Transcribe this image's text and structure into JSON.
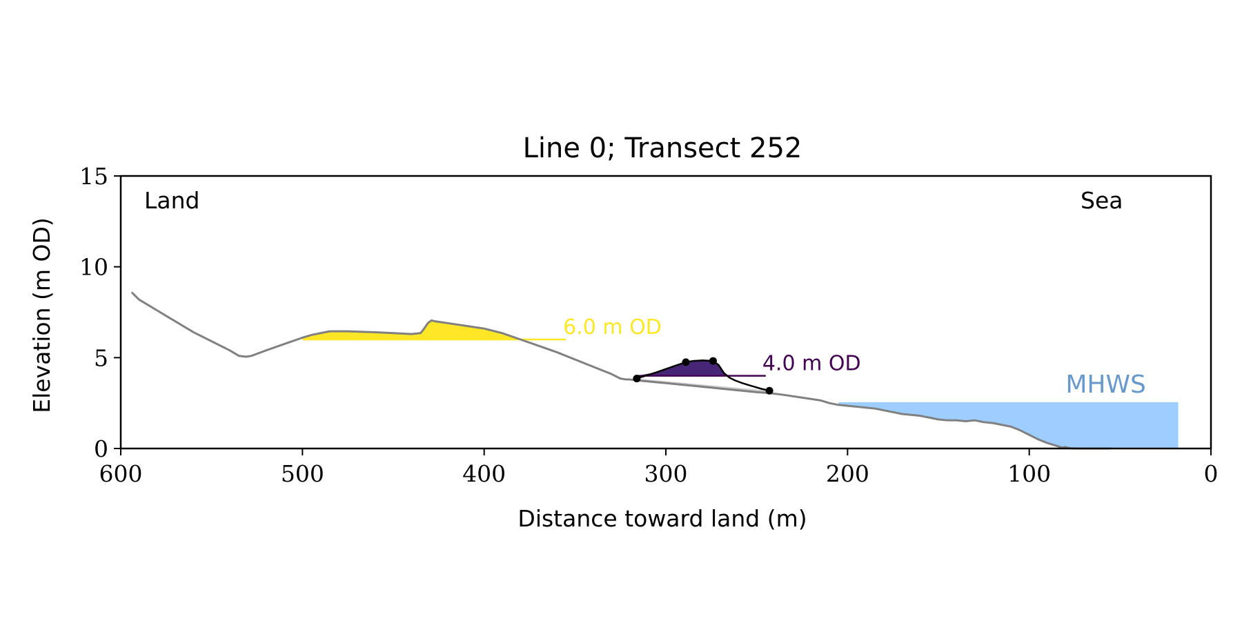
{
  "chart_data": {
    "type": "area",
    "title": "Line 0; Transect 252",
    "xlabel": "Distance toward land (m)",
    "ylabel": "Elevation (m OD)",
    "xlim": [
      600,
      0
    ],
    "ylim": [
      0,
      15
    ],
    "x_ticks": [
      600,
      500,
      400,
      300,
      200,
      100,
      0
    ],
    "y_ticks": [
      0,
      5,
      10,
      15
    ],
    "grid": false,
    "annotations": {
      "land": "Land",
      "sea": "Sea"
    },
    "profile": {
      "color": "#808080",
      "x": [
        594,
        590,
        580,
        570,
        560,
        550,
        540,
        535,
        531,
        528,
        520,
        510,
        500,
        495,
        490,
        485,
        480,
        475,
        470,
        460,
        450,
        440,
        435,
        433,
        431,
        429,
        427,
        420,
        410,
        400,
        390,
        380,
        370,
        360,
        350,
        340,
        330,
        325,
        322,
        320,
        316,
        300,
        290,
        280,
        275,
        270,
        260,
        250,
        243,
        235,
        225,
        215,
        210,
        205,
        200,
        195,
        190,
        185,
        180,
        175,
        170,
        165,
        160,
        155,
        150,
        145,
        140,
        135,
        130,
        125,
        120,
        115,
        110,
        105,
        100,
        95,
        90,
        85,
        82,
        80,
        78,
        75,
        70,
        65,
        60,
        55
      ],
      "y": [
        8.6,
        8.2,
        7.6,
        7.0,
        6.4,
        5.9,
        5.4,
        5.1,
        5.05,
        5.1,
        5.4,
        5.75,
        6.1,
        6.25,
        6.35,
        6.45,
        6.45,
        6.45,
        6.43,
        6.4,
        6.35,
        6.3,
        6.35,
        6.6,
        6.9,
        7.05,
        7.0,
        6.9,
        6.75,
        6.6,
        6.35,
        6.0,
        5.65,
        5.3,
        4.9,
        4.5,
        4.1,
        3.85,
        3.8,
        3.8,
        3.75,
        3.6,
        3.5,
        3.4,
        3.35,
        3.3,
        3.2,
        3.1,
        3.05,
        2.95,
        2.8,
        2.65,
        2.5,
        2.4,
        2.35,
        2.3,
        2.25,
        2.2,
        2.1,
        2.0,
        1.9,
        1.85,
        1.8,
        1.7,
        1.6,
        1.55,
        1.55,
        1.5,
        1.55,
        1.45,
        1.4,
        1.3,
        1.2,
        1.0,
        0.75,
        0.5,
        0.3,
        0.15,
        0.05,
        0.08,
        0.02,
        0.0,
        0.0,
        0.0,
        0.0,
        0.0
      ]
    },
    "level_6": {
      "label": "6.0 m OD",
      "elevation": 6.0,
      "color": "#fde725",
      "x_from": 500,
      "x_to": 355
    },
    "level_4": {
      "label": "4.0 m OD",
      "elevation": 4.0,
      "color": "#440154",
      "fill_color": "#482677",
      "x_from": 316,
      "x_to": 245,
      "feature_x": [
        316,
        305,
        295,
        289,
        285,
        280,
        274,
        271,
        268,
        265,
        262,
        258,
        253,
        248,
        243
      ],
      "feature_y": [
        3.85,
        4.2,
        4.55,
        4.75,
        4.82,
        4.85,
        4.82,
        4.6,
        4.15,
        3.9,
        3.75,
        3.6,
        3.45,
        3.3,
        3.18
      ],
      "points_x": [
        316,
        289,
        274,
        243
      ],
      "points_y": [
        3.85,
        4.75,
        4.82,
        3.18
      ],
      "shadow_color": "#cccccc"
    },
    "mhws": {
      "label": "MHWS",
      "elevation": 2.55,
      "color": "#9ecdff",
      "label_color": "#6699cc",
      "x_from": 205,
      "x_to": 18
    }
  }
}
